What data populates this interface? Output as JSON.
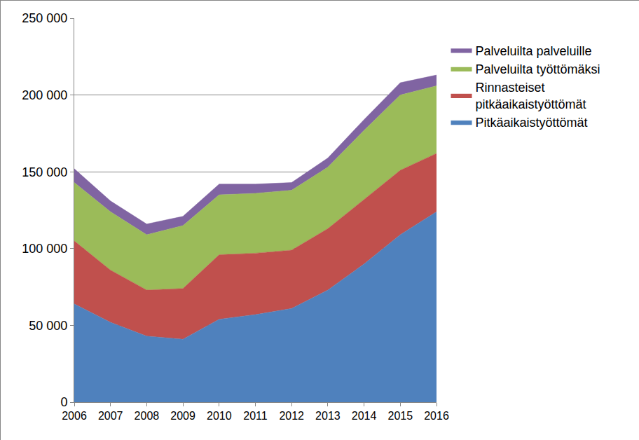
{
  "chart_data": {
    "type": "area",
    "stacked": true,
    "grid": true,
    "legend": "right",
    "categories": [
      "2006",
      "2007",
      "2008",
      "2009",
      "2010",
      "2011",
      "2012",
      "2013",
      "2014",
      "2015",
      "2016"
    ],
    "series": [
      {
        "name": "Pitkäaikaistyöttömät",
        "color": "#4f81bd",
        "values": [
          64000,
          52000,
          43000,
          41000,
          54000,
          57000,
          61000,
          73000,
          90000,
          109000,
          124000
        ]
      },
      {
        "name": "Rinnasteiset pitkäaikaistyöttömät",
        "color": "#c0504d",
        "values": [
          41000,
          34000,
          30000,
          33000,
          42000,
          40000,
          38000,
          40000,
          42000,
          42000,
          38000
        ]
      },
      {
        "name": "Palveluilta työttömäksi",
        "color": "#9bbb59",
        "values": [
          38000,
          38000,
          36000,
          41000,
          39000,
          39000,
          39000,
          40000,
          45000,
          49000,
          44000
        ]
      },
      {
        "name": "Palveluilta palveluille",
        "color": "#8064a2",
        "values": [
          9000,
          7000,
          7000,
          6000,
          7000,
          6000,
          5000,
          6000,
          7000,
          8000,
          7000
        ]
      }
    ],
    "ylim": [
      0,
      250000
    ],
    "yticks": [
      0,
      {
        "value": 50000,
        "label": "50 000"
      },
      {
        "value": 100000,
        "label": "100 000"
      },
      {
        "value": 150000,
        "label": "150 000"
      },
      {
        "value": 200000,
        "label": "200 000"
      },
      {
        "value": 250000,
        "label": "250 000"
      }
    ]
  }
}
